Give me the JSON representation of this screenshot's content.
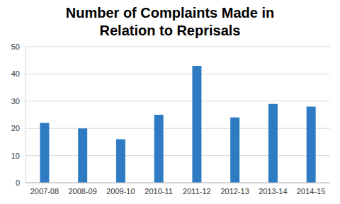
{
  "chart_data": {
    "type": "bar",
    "title": "Number of Complaints Made in Relation to Reprisals",
    "categories": [
      "2007-08",
      "2008-09",
      "2009-10",
      "2010-11",
      "2011-12",
      "2012-13",
      "2013-14",
      "2014-15"
    ],
    "values": [
      22,
      20,
      16,
      25,
      43,
      24,
      29,
      28
    ],
    "color": "#2e7bc4",
    "ylim": [
      0,
      50
    ],
    "yticks": [
      0,
      10,
      20,
      30,
      40,
      50
    ],
    "grid": true
  }
}
